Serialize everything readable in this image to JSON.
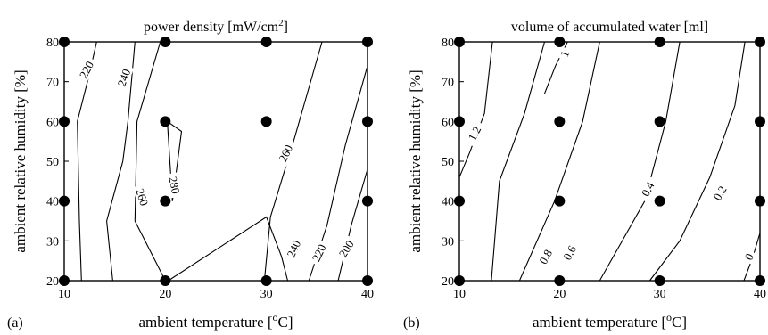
{
  "chart_data": [
    {
      "type": "contour",
      "panel_label": "(a)",
      "title": "power density [mW/cm",
      "title_sup": "2",
      "title_end": "]",
      "xlabel": "ambient temperature [",
      "xlabel_sup": "o",
      "xlabel_end": "C]",
      "ylabel": "ambient relative humidity [%]",
      "xlim": [
        10,
        40
      ],
      "ylim": [
        20,
        80
      ],
      "xticks": [
        10,
        20,
        30,
        40
      ],
      "yticks": [
        20,
        30,
        40,
        50,
        60,
        70,
        80
      ],
      "points": [
        [
          10,
          20
        ],
        [
          20,
          20
        ],
        [
          30,
          20
        ],
        [
          40,
          20
        ],
        [
          10,
          40
        ],
        [
          20,
          40
        ],
        [
          40,
          40
        ],
        [
          10,
          60
        ],
        [
          20,
          60
        ],
        [
          30,
          60
        ],
        [
          40,
          60
        ],
        [
          10,
          80
        ],
        [
          20,
          80
        ],
        [
          30,
          80
        ],
        [
          40,
          80
        ]
      ],
      "contours": [
        {
          "level": "220",
          "path": [
            [
              11.7,
              20
            ],
            [
              11.5,
              35
            ],
            [
              11.3,
              60
            ],
            [
              12.5,
              72
            ],
            [
              13.2,
              80
            ]
          ],
          "label_at": [
            12.2,
            73
          ],
          "label_angle": -62
        },
        {
          "level": "240",
          "path": [
            [
              14.8,
              20
            ],
            [
              14.2,
              35
            ],
            [
              15.8,
              50
            ],
            [
              16.3,
              60
            ],
            [
              17,
              80
            ]
          ],
          "label_at": [
            15.9,
            71
          ],
          "label_angle": -70
        },
        {
          "level": "260",
          "path": [
            [
              20,
              20
            ],
            [
              17,
              35
            ],
            [
              17.2,
              60
            ],
            [
              19.5,
              80
            ]
          ],
          "label_at": [
            17.7,
            41
          ],
          "label_angle": 72
        },
        {
          "level": "280",
          "path": [
            [
              20.2,
              60
            ],
            [
              20.7,
              40
            ],
            [
              21.6,
              57.5
            ],
            [
              20.2,
              60
            ]
          ],
          "label_at": [
            20.9,
            44
          ],
          "label_angle": 78
        },
        {
          "level": "260",
          "path": [
            [
              29.8,
              20
            ],
            [
              30.4,
              36
            ],
            [
              32.8,
              56
            ],
            [
              35.5,
              80
            ]
          ],
          "label_at": [
            31.9,
            52
          ],
          "label_angle": -64
        },
        {
          "level": "240",
          "path": [
            [
              20.3,
              20
            ],
            [
              30,
              36
            ],
            [
              31.5,
              26
            ],
            [
              32.1,
              20
            ]
          ],
          "label_at": [
            32.7,
            28
          ],
          "label_angle": -65
        },
        {
          "level": "220",
          "path": [
            [
              34.2,
              20
            ],
            [
              36,
              34
            ],
            [
              37.8,
              54
            ],
            [
              40,
              74
            ]
          ],
          "label_at": [
            35.2,
            27
          ],
          "label_angle": -64
        },
        {
          "level": "200",
          "path": [
            [
              37.1,
              20
            ],
            [
              38.4,
              34
            ],
            [
              40,
              48
            ]
          ],
          "label_at": [
            37.9,
            28
          ],
          "label_angle": -58
        }
      ]
    },
    {
      "type": "contour",
      "panel_label": "(b)",
      "title": "volume of accumulated water [ml]",
      "title_sup": "",
      "title_end": "",
      "xlabel": "ambient temperature [",
      "xlabel_sup": "o",
      "xlabel_end": "C]",
      "ylabel": "ambient relative humidity [%]",
      "xlim": [
        10,
        40
      ],
      "ylim": [
        20,
        80
      ],
      "xticks": [
        10,
        20,
        30,
        40
      ],
      "yticks": [
        20,
        30,
        40,
        50,
        60,
        70,
        80
      ],
      "points": [
        [
          10,
          20
        ],
        [
          20,
          20
        ],
        [
          30,
          20
        ],
        [
          40,
          20
        ],
        [
          10,
          40
        ],
        [
          20,
          40
        ],
        [
          30,
          40
        ],
        [
          40,
          40
        ],
        [
          10,
          60
        ],
        [
          20,
          60
        ],
        [
          30,
          60
        ],
        [
          40,
          60
        ],
        [
          10,
          80
        ],
        [
          20,
          80
        ],
        [
          30,
          80
        ],
        [
          40,
          80
        ]
      ],
      "contours": [
        {
          "level": "1",
          "path": [
            [
              20.8,
              80
            ],
            [
              19.6,
              74
            ],
            [
              18.5,
              67
            ]
          ],
          "label_at": [
            20.5,
            77
          ],
          "label_angle": -70
        },
        {
          "level": "1.2",
          "path": [
            [
              10,
              46
            ],
            [
              11,
              52
            ],
            [
              12.5,
              62
            ],
            [
              13.3,
              80
            ]
          ],
          "label_at": [
            11.5,
            57
          ],
          "label_angle": -62
        },
        {
          "level": "0.8",
          "path": [
            [
              13.2,
              20
            ],
            [
              14,
              45
            ],
            [
              16.5,
              62
            ],
            [
              18.5,
              80
            ]
          ],
          "label_at": [
            18.6,
            26
          ],
          "label_angle": -62
        },
        {
          "level": "0.6",
          "path": [
            [
              16,
              20
            ],
            [
              19.5,
              40
            ],
            [
              22.3,
              60
            ],
            [
              24,
              80
            ]
          ],
          "label_at": [
            21,
            27
          ],
          "label_angle": -62
        },
        {
          "level": "0.4",
          "path": [
            [
              24,
              20
            ],
            [
              28.5,
              40
            ],
            [
              30.6,
              60
            ],
            [
              32,
              80
            ]
          ],
          "label_at": [
            28.8,
            43
          ],
          "label_angle": -62
        },
        {
          "level": "0.2",
          "path": [
            [
              29,
              20
            ],
            [
              32,
              30
            ],
            [
              35,
              46
            ],
            [
              37.5,
              64
            ],
            [
              38.5,
              80
            ]
          ],
          "label_at": [
            36,
            42
          ],
          "label_angle": -60
        },
        {
          "level": "0",
          "path": [
            [
              38.4,
              20
            ],
            [
              39.3,
              26
            ],
            [
              40,
              32
            ]
          ],
          "label_at": [
            38.9,
            26
          ],
          "label_angle": -65
        }
      ]
    }
  ]
}
